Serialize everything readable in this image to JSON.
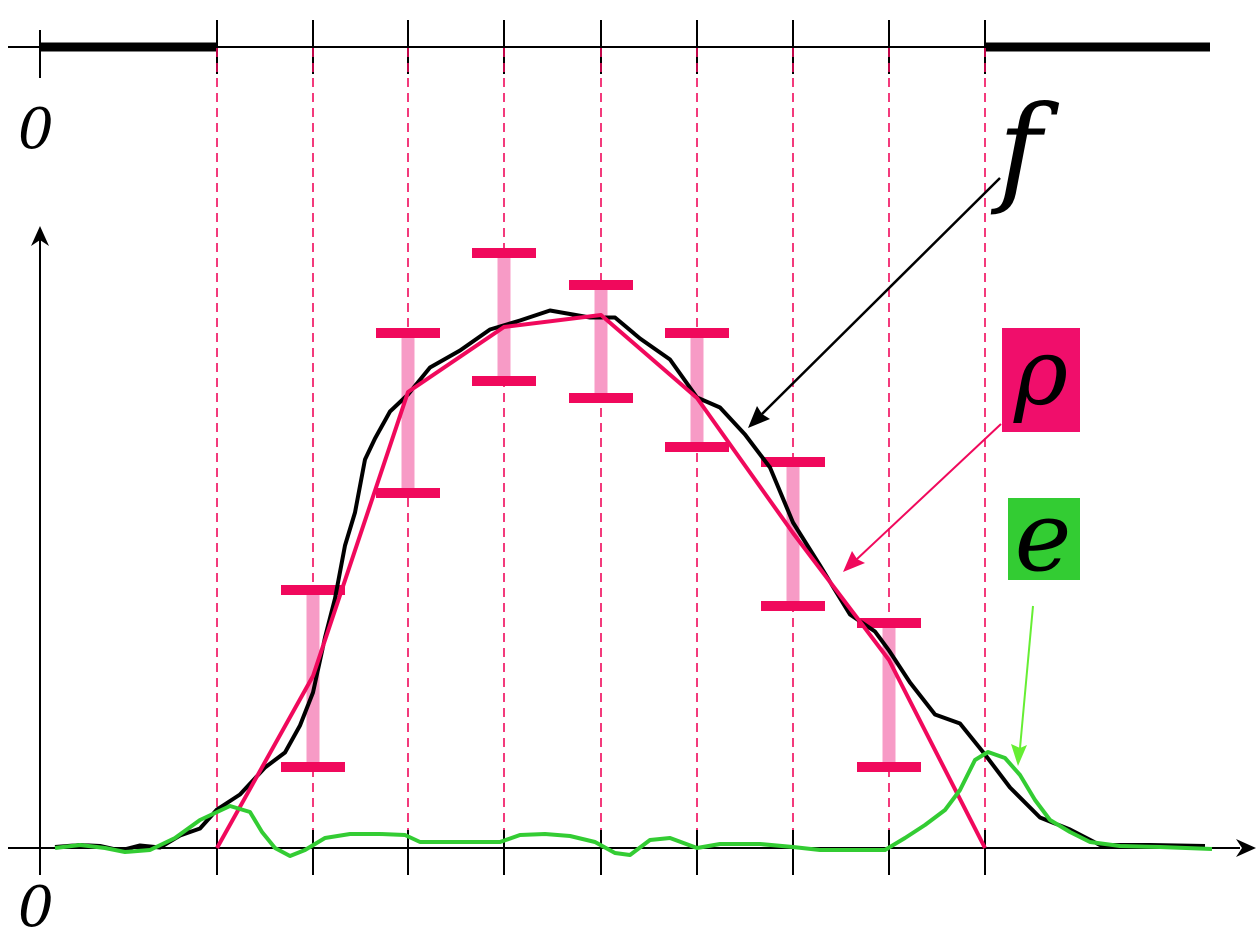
{
  "labels": {
    "top_zero": "0",
    "bottom_zero": "0",
    "f": "f",
    "rho": "ρ",
    "e": "e"
  },
  "colors": {
    "black": "#000000",
    "magenta": "#f0095c",
    "magenta_fill": "#f00e6b",
    "pink_bar": "#f79bc6",
    "green": "#33cc33",
    "green_fill": "#33cc33",
    "green_arrow": "#66ee33"
  },
  "icons": {
    "axis_arrow": "arrowhead",
    "callout_arrow": "arrowhead"
  }
}
